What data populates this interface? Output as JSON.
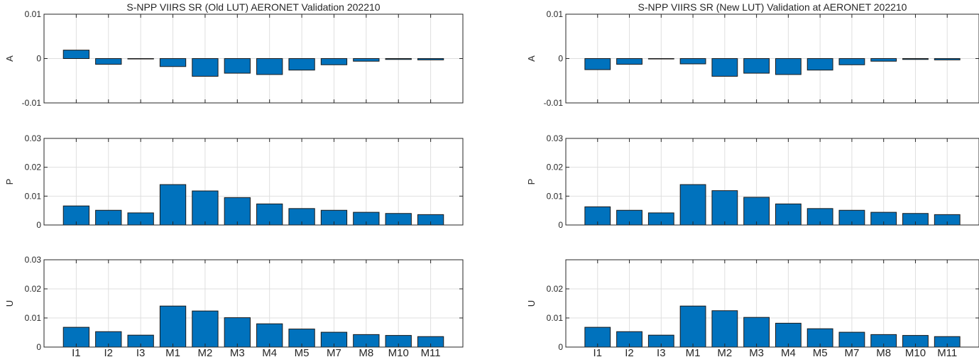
{
  "chart_data": [
    {
      "type": "bar",
      "title": "S-NPP VIIRS SR (Old LUT) AERONET Validation 202210",
      "categories": [
        "I1",
        "I2",
        "I3",
        "M1",
        "M2",
        "M3",
        "M4",
        "M5",
        "M7",
        "M8",
        "M10",
        "M11"
      ],
      "panels": [
        {
          "ylabel": "A",
          "ylim": [
            -0.01,
            0.01
          ],
          "yticks": [
            -0.01,
            0,
            0.01
          ],
          "ytick_labels": [
            "-0.01",
            "0",
            "0.01"
          ],
          "values": [
            0.0019,
            -0.0013,
            0.0,
            -0.0018,
            -0.004,
            -0.0033,
            -0.0036,
            -0.0026,
            -0.0014,
            -0.0006,
            -0.0002,
            -0.0003
          ]
        },
        {
          "ylabel": "P",
          "ylim": [
            0,
            0.03
          ],
          "yticks": [
            0,
            0.01,
            0.02,
            0.03
          ],
          "ytick_labels": [
            "0",
            "0.01",
            "0.02",
            "0.03"
          ],
          "values": [
            0.0066,
            0.0051,
            0.0042,
            0.014,
            0.0118,
            0.0095,
            0.0073,
            0.0057,
            0.0051,
            0.0044,
            0.004,
            0.0036
          ]
        },
        {
          "ylabel": "U",
          "ylim": [
            0,
            0.03
          ],
          "yticks": [
            0,
            0.01,
            0.02,
            0.03
          ],
          "ytick_labels": [
            "0",
            "0.01",
            "0.02",
            "0.03"
          ],
          "values": [
            0.0068,
            0.0053,
            0.0041,
            0.0141,
            0.0124,
            0.0101,
            0.008,
            0.0062,
            0.0051,
            0.0043,
            0.004,
            0.0036
          ]
        }
      ],
      "grid": true
    },
    {
      "type": "bar",
      "title": "S-NPP VIIRS SR (New LUT) Validation at AERONET 202210",
      "categories": [
        "I1",
        "I2",
        "I3",
        "M1",
        "M2",
        "M3",
        "M4",
        "M5",
        "M7",
        "M8",
        "M10",
        "M11"
      ],
      "panels": [
        {
          "ylabel": "A",
          "ylim": [
            -0.01,
            0.01
          ],
          "yticks": [
            -0.01,
            0,
            0.01
          ],
          "ytick_labels": [
            "-0.01",
            "0",
            "0.01"
          ],
          "values": [
            -0.0025,
            -0.0013,
            0.0,
            -0.0012,
            -0.004,
            -0.0033,
            -0.0036,
            -0.0026,
            -0.0014,
            -0.0006,
            -0.0002,
            -0.0003
          ]
        },
        {
          "ylabel": "P",
          "ylim": [
            0,
            0.03
          ],
          "yticks": [
            0,
            0.01,
            0.02,
            0.03
          ],
          "ytick_labels": [
            "0",
            "0.01",
            "0.02",
            "0.03"
          ],
          "values": [
            0.0063,
            0.0051,
            0.0042,
            0.014,
            0.0119,
            0.0096,
            0.0073,
            0.0057,
            0.0051,
            0.0044,
            0.004,
            0.0036
          ]
        },
        {
          "ylabel": "U",
          "ylim": [
            0,
            0.03
          ],
          "yticks": [
            0,
            0.01,
            0.02
          ],
          "ytick_labels": [
            "0",
            "0.01",
            "0.02"
          ],
          "values": [
            0.0068,
            0.0053,
            0.0041,
            0.0141,
            0.0125,
            0.0102,
            0.0082,
            0.0063,
            0.0051,
            0.0043,
            0.004,
            0.0036
          ]
        }
      ],
      "grid": true
    }
  ]
}
